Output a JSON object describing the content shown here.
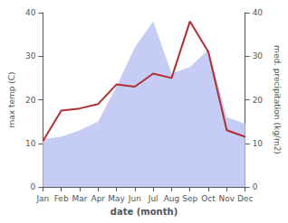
{
  "chart_data": {
    "type": "line",
    "categories": [
      "Jan",
      "Feb",
      "Mar",
      "Apr",
      "May",
      "Jun",
      "Jul",
      "Aug",
      "Sep",
      "Oct",
      "Nov",
      "Dec"
    ],
    "xlabel": "date (month)",
    "ylabel": "max temp (C)",
    "y2label": "med. precipitation (kg/m2)",
    "ylim": [
      0,
      40
    ],
    "yticks": [
      0,
      10,
      20,
      30,
      40
    ],
    "y2lim": [
      0,
      40
    ],
    "y2ticks": [
      0,
      10,
      20,
      30,
      40
    ],
    "grid": false,
    "series": [
      {
        "type": "area",
        "color": "#c5ccf5",
        "axis": "y2",
        "values": [
          11.0,
          11.5,
          13.0,
          15.0,
          23.0,
          32.0,
          38.0,
          26.0,
          27.5,
          31.5,
          16.0,
          14.5
        ]
      },
      {
        "type": "line",
        "color": "#b03030",
        "values": [
          10.5,
          17.5,
          18.0,
          19.0,
          23.5,
          23.0,
          26.0,
          25.0,
          38.0,
          31.0,
          13.0,
          11.5
        ]
      }
    ]
  }
}
